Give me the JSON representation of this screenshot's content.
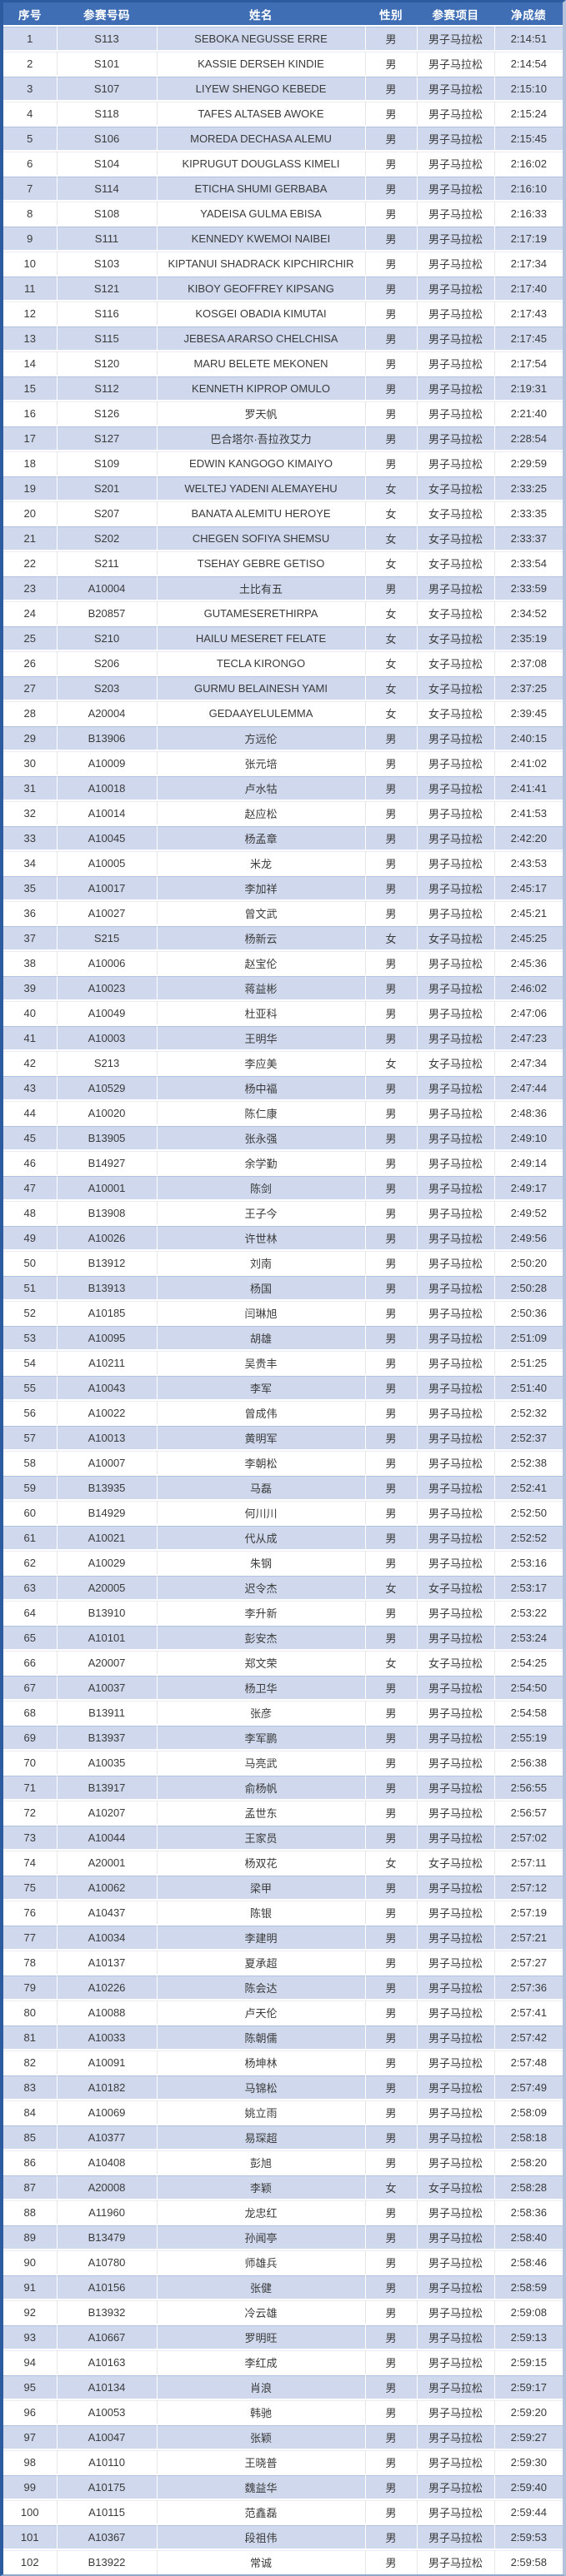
{
  "colors": {
    "header_bg": "#3f6eb5",
    "row_shaded_bg": "#cfd8ec",
    "row_white_bg": "#ffffff",
    "outer_border_dark": "#2c5c9f",
    "text": "#3b3b3b",
    "header_text": "#ffffff"
  },
  "results_table": {
    "headers": [
      "序号",
      "参赛号码",
      "姓名",
      "性别",
      "参赛项目",
      "净成绩"
    ],
    "rows": [
      [
        "1",
        "S113",
        "SEBOKA NEGUSSE ERRE",
        "男",
        "男子马拉松",
        "2:14:51"
      ],
      [
        "2",
        "S101",
        "KASSIE DERSEH KINDIE",
        "男",
        "男子马拉松",
        "2:14:54"
      ],
      [
        "3",
        "S107",
        "LIYEW SHENGO KEBEDE",
        "男",
        "男子马拉松",
        "2:15:10"
      ],
      [
        "4",
        "S118",
        "TAFES ALTASEB AWOKE",
        "男",
        "男子马拉松",
        "2:15:24"
      ],
      [
        "5",
        "S106",
        "MOREDA DECHASA ALEMU",
        "男",
        "男子马拉松",
        "2:15:45"
      ],
      [
        "6",
        "S104",
        "KIPRUGUT DOUGLASS KIMELI",
        "男",
        "男子马拉松",
        "2:16:02"
      ],
      [
        "7",
        "S114",
        "ETICHA SHUMI GERBABA",
        "男",
        "男子马拉松",
        "2:16:10"
      ],
      [
        "8",
        "S108",
        "YADEISA GULMA EBISA",
        "男",
        "男子马拉松",
        "2:16:33"
      ],
      [
        "9",
        "S111",
        "KENNEDY KWEMOI NAIBEI",
        "男",
        "男子马拉松",
        "2:17:19"
      ],
      [
        "10",
        "S103",
        "KIPTANUI SHADRACK KIPCHIRCHIR",
        "男",
        "男子马拉松",
        "2:17:34"
      ],
      [
        "11",
        "S121",
        "KIBOY GEOFFREY KIPSANG",
        "男",
        "男子马拉松",
        "2:17:40"
      ],
      [
        "12",
        "S116",
        "KOSGEI OBADIA KIMUTAI",
        "男",
        "男子马拉松",
        "2:17:43"
      ],
      [
        "13",
        "S115",
        "JEBESA ARARSO CHELCHISA",
        "男",
        "男子马拉松",
        "2:17:45"
      ],
      [
        "14",
        "S120",
        "MARU BELETE MEKONEN",
        "男",
        "男子马拉松",
        "2:17:54"
      ],
      [
        "15",
        "S112",
        "KENNETH KIPROP OMULO",
        "男",
        "男子马拉松",
        "2:19:31"
      ],
      [
        "16",
        "S126",
        "罗天帆",
        "男",
        "男子马拉松",
        "2:21:40"
      ],
      [
        "17",
        "S127",
        "巴合塔尔·吾拉孜艾力",
        "男",
        "男子马拉松",
        "2:28:54"
      ],
      [
        "18",
        "S109",
        "EDWIN KANGOGO KIMAIYO",
        "男",
        "男子马拉松",
        "2:29:59"
      ],
      [
        "19",
        "S201",
        "WELTEJ YADENI ALEMAYEHU",
        "女",
        "女子马拉松",
        "2:33:25"
      ],
      [
        "20",
        "S207",
        "BANATA ALEMITU HEROYE",
        "女",
        "女子马拉松",
        "2:33:35"
      ],
      [
        "21",
        "S202",
        "CHEGEN SOFIYA SHEMSU",
        "女",
        "女子马拉松",
        "2:33:37"
      ],
      [
        "22",
        "S211",
        "TSEHAY GEBRE GETISO",
        "女",
        "女子马拉松",
        "2:33:54"
      ],
      [
        "23",
        "A10004",
        "土比有五",
        "男",
        "男子马拉松",
        "2:33:59"
      ],
      [
        "24",
        "B20857",
        "GUTAMESERETHIRPA",
        "女",
        "女子马拉松",
        "2:34:52"
      ],
      [
        "25",
        "S210",
        "HAILU MESERET FELATE",
        "女",
        "女子马拉松",
        "2:35:19"
      ],
      [
        "26",
        "S206",
        "TECLA KIRONGO",
        "女",
        "女子马拉松",
        "2:37:08"
      ],
      [
        "27",
        "S203",
        "GURMU BELAINESH YAMI",
        "女",
        "女子马拉松",
        "2:37:25"
      ],
      [
        "28",
        "A20004",
        "GEDAAYELULEMMA",
        "女",
        "女子马拉松",
        "2:39:45"
      ],
      [
        "29",
        "B13906",
        "方远伦",
        "男",
        "男子马拉松",
        "2:40:15"
      ],
      [
        "30",
        "A10009",
        "张元培",
        "男",
        "男子马拉松",
        "2:41:02"
      ],
      [
        "31",
        "A10018",
        "卢水牯",
        "男",
        "男子马拉松",
        "2:41:41"
      ],
      [
        "32",
        "A10014",
        "赵应松",
        "男",
        "男子马拉松",
        "2:41:53"
      ],
      [
        "33",
        "A10045",
        "杨孟章",
        "男",
        "男子马拉松",
        "2:42:20"
      ],
      [
        "34",
        "A10005",
        "米龙",
        "男",
        "男子马拉松",
        "2:43:53"
      ],
      [
        "35",
        "A10017",
        "李加祥",
        "男",
        "男子马拉松",
        "2:45:17"
      ],
      [
        "36",
        "A10027",
        "曾文武",
        "男",
        "男子马拉松",
        "2:45:21"
      ],
      [
        "37",
        "S215",
        "杨新云",
        "女",
        "女子马拉松",
        "2:45:25"
      ],
      [
        "38",
        "A10006",
        "赵宝伦",
        "男",
        "男子马拉松",
        "2:45:36"
      ],
      [
        "39",
        "A10023",
        "蒋益彬",
        "男",
        "男子马拉松",
        "2:46:02"
      ],
      [
        "40",
        "A10049",
        "杜亚科",
        "男",
        "男子马拉松",
        "2:47:06"
      ],
      [
        "41",
        "A10003",
        "王明华",
        "男",
        "男子马拉松",
        "2:47:23"
      ],
      [
        "42",
        "S213",
        "李应美",
        "女",
        "女子马拉松",
        "2:47:34"
      ],
      [
        "43",
        "A10529",
        "杨中福",
        "男",
        "男子马拉松",
        "2:47:44"
      ],
      [
        "44",
        "A10020",
        "陈仁康",
        "男",
        "男子马拉松",
        "2:48:36"
      ],
      [
        "45",
        "B13905",
        "张永强",
        "男",
        "男子马拉松",
        "2:49:10"
      ],
      [
        "46",
        "B14927",
        "余学勤",
        "男",
        "男子马拉松",
        "2:49:14"
      ],
      [
        "47",
        "A10001",
        "陈剑",
        "男",
        "男子马拉松",
        "2:49:17"
      ],
      [
        "48",
        "B13908",
        "王子今",
        "男",
        "男子马拉松",
        "2:49:52"
      ],
      [
        "49",
        "A10026",
        "许世林",
        "男",
        "男子马拉松",
        "2:49:56"
      ],
      [
        "50",
        "B13912",
        "刘南",
        "男",
        "男子马拉松",
        "2:50:20"
      ],
      [
        "51",
        "B13913",
        "杨国",
        "男",
        "男子马拉松",
        "2:50:28"
      ],
      [
        "52",
        "A10185",
        "闫琳旭",
        "男",
        "男子马拉松",
        "2:50:36"
      ],
      [
        "53",
        "A10095",
        "胡雄",
        "男",
        "男子马拉松",
        "2:51:09"
      ],
      [
        "54",
        "A10211",
        "吴贵丰",
        "男",
        "男子马拉松",
        "2:51:25"
      ],
      [
        "55",
        "A10043",
        "李军",
        "男",
        "男子马拉松",
        "2:51:40"
      ],
      [
        "56",
        "A10022",
        "曾成伟",
        "男",
        "男子马拉松",
        "2:52:32"
      ],
      [
        "57",
        "A10013",
        "黄明军",
        "男",
        "男子马拉松",
        "2:52:37"
      ],
      [
        "58",
        "A10007",
        "李朝松",
        "男",
        "男子马拉松",
        "2:52:38"
      ],
      [
        "59",
        "B13935",
        "马磊",
        "男",
        "男子马拉松",
        "2:52:41"
      ],
      [
        "60",
        "B14929",
        "何川川",
        "男",
        "男子马拉松",
        "2:52:50"
      ],
      [
        "61",
        "A10021",
        "代从成",
        "男",
        "男子马拉松",
        "2:52:52"
      ],
      [
        "62",
        "A10029",
        "朱钢",
        "男",
        "男子马拉松",
        "2:53:16"
      ],
      [
        "63",
        "A20005",
        "迟令杰",
        "女",
        "女子马拉松",
        "2:53:17"
      ],
      [
        "64",
        "B13910",
        "李升新",
        "男",
        "男子马拉松",
        "2:53:22"
      ],
      [
        "65",
        "A10101",
        "彭安杰",
        "男",
        "男子马拉松",
        "2:53:24"
      ],
      [
        "66",
        "A20007",
        "郑文荣",
        "女",
        "女子马拉松",
        "2:54:25"
      ],
      [
        "67",
        "A10037",
        "杨卫华",
        "男",
        "男子马拉松",
        "2:54:50"
      ],
      [
        "68",
        "B13911",
        "张彦",
        "男",
        "男子马拉松",
        "2:54:58"
      ],
      [
        "69",
        "B13937",
        "李军鹏",
        "男",
        "男子马拉松",
        "2:55:19"
      ],
      [
        "70",
        "A10035",
        "马亮武",
        "男",
        "男子马拉松",
        "2:56:38"
      ],
      [
        "71",
        "B13917",
        "俞杨帆",
        "男",
        "男子马拉松",
        "2:56:55"
      ],
      [
        "72",
        "A10207",
        "孟世东",
        "男",
        "男子马拉松",
        "2:56:57"
      ],
      [
        "73",
        "A10044",
        "王家员",
        "男",
        "男子马拉松",
        "2:57:02"
      ],
      [
        "74",
        "A20001",
        "杨双花",
        "女",
        "女子马拉松",
        "2:57:11"
      ],
      [
        "75",
        "A10062",
        "梁甲",
        "男",
        "男子马拉松",
        "2:57:12"
      ],
      [
        "76",
        "A10437",
        "陈银",
        "男",
        "男子马拉松",
        "2:57:19"
      ],
      [
        "77",
        "A10034",
        "李建明",
        "男",
        "男子马拉松",
        "2:57:21"
      ],
      [
        "78",
        "A10137",
        "夏承超",
        "男",
        "男子马拉松",
        "2:57:27"
      ],
      [
        "79",
        "A10226",
        "陈会达",
        "男",
        "男子马拉松",
        "2:57:36"
      ],
      [
        "80",
        "A10088",
        "卢天伦",
        "男",
        "男子马拉松",
        "2:57:41"
      ],
      [
        "81",
        "A10033",
        "陈朝儒",
        "男",
        "男子马拉松",
        "2:57:42"
      ],
      [
        "82",
        "A10091",
        "杨坤林",
        "男",
        "男子马拉松",
        "2:57:48"
      ],
      [
        "83",
        "A10182",
        "马锦松",
        "男",
        "男子马拉松",
        "2:57:49"
      ],
      [
        "84",
        "A10069",
        "姚立雨",
        "男",
        "男子马拉松",
        "2:58:09"
      ],
      [
        "85",
        "A10377",
        "易琛超",
        "男",
        "男子马拉松",
        "2:58:18"
      ],
      [
        "86",
        "A10408",
        "彭旭",
        "男",
        "男子马拉松",
        "2:58:20"
      ],
      [
        "87",
        "A20008",
        "李颖",
        "女",
        "女子马拉松",
        "2:58:28"
      ],
      [
        "88",
        "A11960",
        "龙忠红",
        "男",
        "男子马拉松",
        "2:58:36"
      ],
      [
        "89",
        "B13479",
        "孙闻亭",
        "男",
        "男子马拉松",
        "2:58:40"
      ],
      [
        "90",
        "A10780",
        "师雄兵",
        "男",
        "男子马拉松",
        "2:58:46"
      ],
      [
        "91",
        "A10156",
        "张健",
        "男",
        "男子马拉松",
        "2:58:59"
      ],
      [
        "92",
        "B13932",
        "冷云雄",
        "男",
        "男子马拉松",
        "2:59:08"
      ],
      [
        "93",
        "A10667",
        "罗明旺",
        "男",
        "男子马拉松",
        "2:59:13"
      ],
      [
        "94",
        "A10163",
        "李红成",
        "男",
        "男子马拉松",
        "2:59:15"
      ],
      [
        "95",
        "A10134",
        "肖浪",
        "男",
        "男子马拉松",
        "2:59:17"
      ],
      [
        "96",
        "A10053",
        "韩驰",
        "男",
        "男子马拉松",
        "2:59:20"
      ],
      [
        "97",
        "A10047",
        "张颖",
        "男",
        "男子马拉松",
        "2:59:27"
      ],
      [
        "98",
        "A10110",
        "王晓普",
        "男",
        "男子马拉松",
        "2:59:30"
      ],
      [
        "99",
        "A10175",
        "魏益华",
        "男",
        "男子马拉松",
        "2:59:40"
      ],
      [
        "100",
        "A10115",
        "范鑫磊",
        "男",
        "男子马拉松",
        "2:59:44"
      ],
      [
        "101",
        "A10367",
        "段祖伟",
        "男",
        "男子马拉松",
        "2:59:53"
      ],
      [
        "102",
        "B13922",
        "常诚",
        "男",
        "男子马拉松",
        "2:59:58"
      ]
    ]
  }
}
